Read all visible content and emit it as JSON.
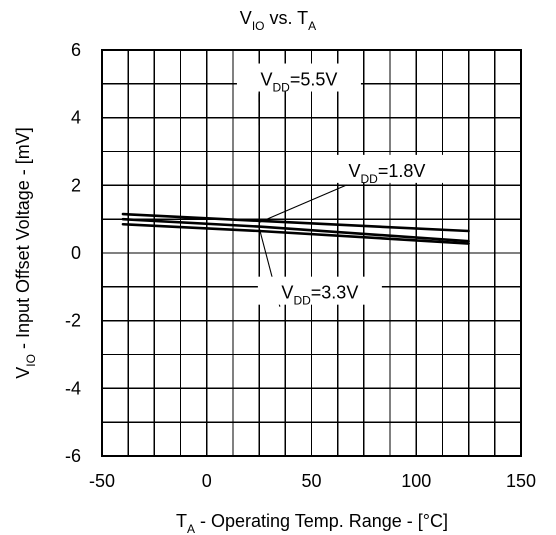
{
  "chart_data": {
    "type": "line",
    "title": {
      "main": "V",
      "main_sub": "IO",
      "middle": " vs. T",
      "end_sub": "A"
    },
    "xlabel": {
      "prefix": "T",
      "prefix_sub": "A",
      "rest": " - Operating Temp. Range - [°C]"
    },
    "ylabel": {
      "prefix": "V",
      "prefix_sub": "IO",
      "rest": " - Input Offset Voltage - [mV]"
    },
    "xlim": [
      -50,
      150
    ],
    "ylim": [
      -6,
      6
    ],
    "x_ticks": [
      {
        "value": -50,
        "label": "-50"
      },
      {
        "value": 0,
        "label": "0"
      },
      {
        "value": 50,
        "label": "50"
      },
      {
        "value": 100,
        "label": "100"
      },
      {
        "value": 150,
        "label": "150"
      }
    ],
    "y_ticks": [
      {
        "value": 6,
        "label": "6"
      },
      {
        "value": 4,
        "label": "4"
      },
      {
        "value": 2,
        "label": "2"
      },
      {
        "value": 0,
        "label": "0"
      },
      {
        "value": -2,
        "label": "-2"
      },
      {
        "value": -4,
        "label": "-4"
      },
      {
        "value": -6,
        "label": "-6"
      }
    ],
    "grid": {
      "x_step": 12.5,
      "y_step": 1
    },
    "series": [
      {
        "label_prefix": "V",
        "label_sub": "DD",
        "label_rest": "=5.5V",
        "x": [
          -40,
          25,
          125
        ],
        "y": [
          1.15,
          0.95,
          0.65
        ]
      },
      {
        "label_prefix": "V",
        "label_sub": "DD",
        "label_rest": "=1.8V",
        "x": [
          -40,
          25,
          125
        ],
        "y": [
          0.85,
          0.65,
          0.28
        ]
      },
      {
        "label_prefix": "V",
        "label_sub": "DD",
        "label_rest": "=3.3V",
        "x": [
          -40,
          25,
          125
        ],
        "y": [
          1.0,
          0.78,
          0.35
        ]
      }
    ],
    "annotations": [
      {
        "series_index": 0,
        "text_x": 44,
        "text_y": 4.95,
        "anchor_x": 25,
        "anchor_y": 0.9
      },
      {
        "series_index": 1,
        "text_x": 86,
        "text_y": 2.25,
        "anchor_x": 25,
        "anchor_y": 0.9
      },
      {
        "series_index": 2,
        "text_x": 54,
        "text_y": -1.35,
        "anchor_x": 25,
        "anchor_y": 0.75
      }
    ],
    "colors": {
      "background": "#ffffff",
      "line": "#000000",
      "grid": "#000000"
    }
  }
}
